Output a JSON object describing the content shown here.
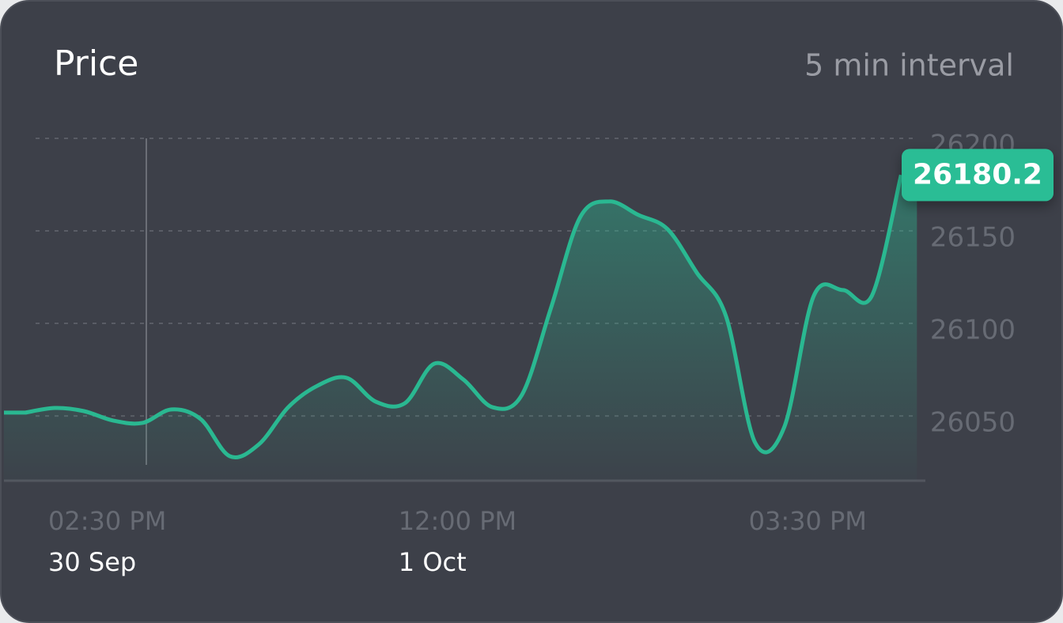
{
  "chart_data": {
    "type": "line",
    "title": "Price",
    "subtitle": "5 min interval",
    "categories": [
      null,
      null,
      null,
      "02:30 PM",
      null,
      null,
      null,
      null,
      null,
      null,
      null,
      null,
      null,
      null,
      null,
      "12:00 PM",
      null,
      null,
      null,
      null,
      null,
      null,
      null,
      null,
      null,
      null,
      null,
      "03:30 PM",
      null,
      null,
      null
    ],
    "dates": [
      null,
      null,
      null,
      "30 Sep",
      null,
      null,
      null,
      null,
      null,
      null,
      null,
      null,
      null,
      null,
      null,
      "1 Oct",
      null,
      null,
      null,
      null,
      null,
      null,
      null,
      null,
      null,
      null,
      null,
      null,
      null,
      null,
      null
    ],
    "values": [
      26051.8,
      26054.3,
      26052.6,
      26047.5,
      26046.2,
      26053.5,
      26048.3,
      26028.2,
      26034.7,
      26054.7,
      26066.3,
      26070.6,
      26057.7,
      26056.9,
      26078.2,
      26069.7,
      26054.7,
      26061.2,
      26108.2,
      26157.3,
      26165.9,
      26158.6,
      26150.9,
      26127.4,
      26103.9,
      26035.5,
      26044.1,
      26114.6,
      26118,
      26115,
      26180.2
    ],
    "color": "#2ab891",
    "ylim": [
      26015,
      26200
    ],
    "yticks": [
      26050,
      26100,
      26150,
      26200
    ],
    "grid": true
  }
}
